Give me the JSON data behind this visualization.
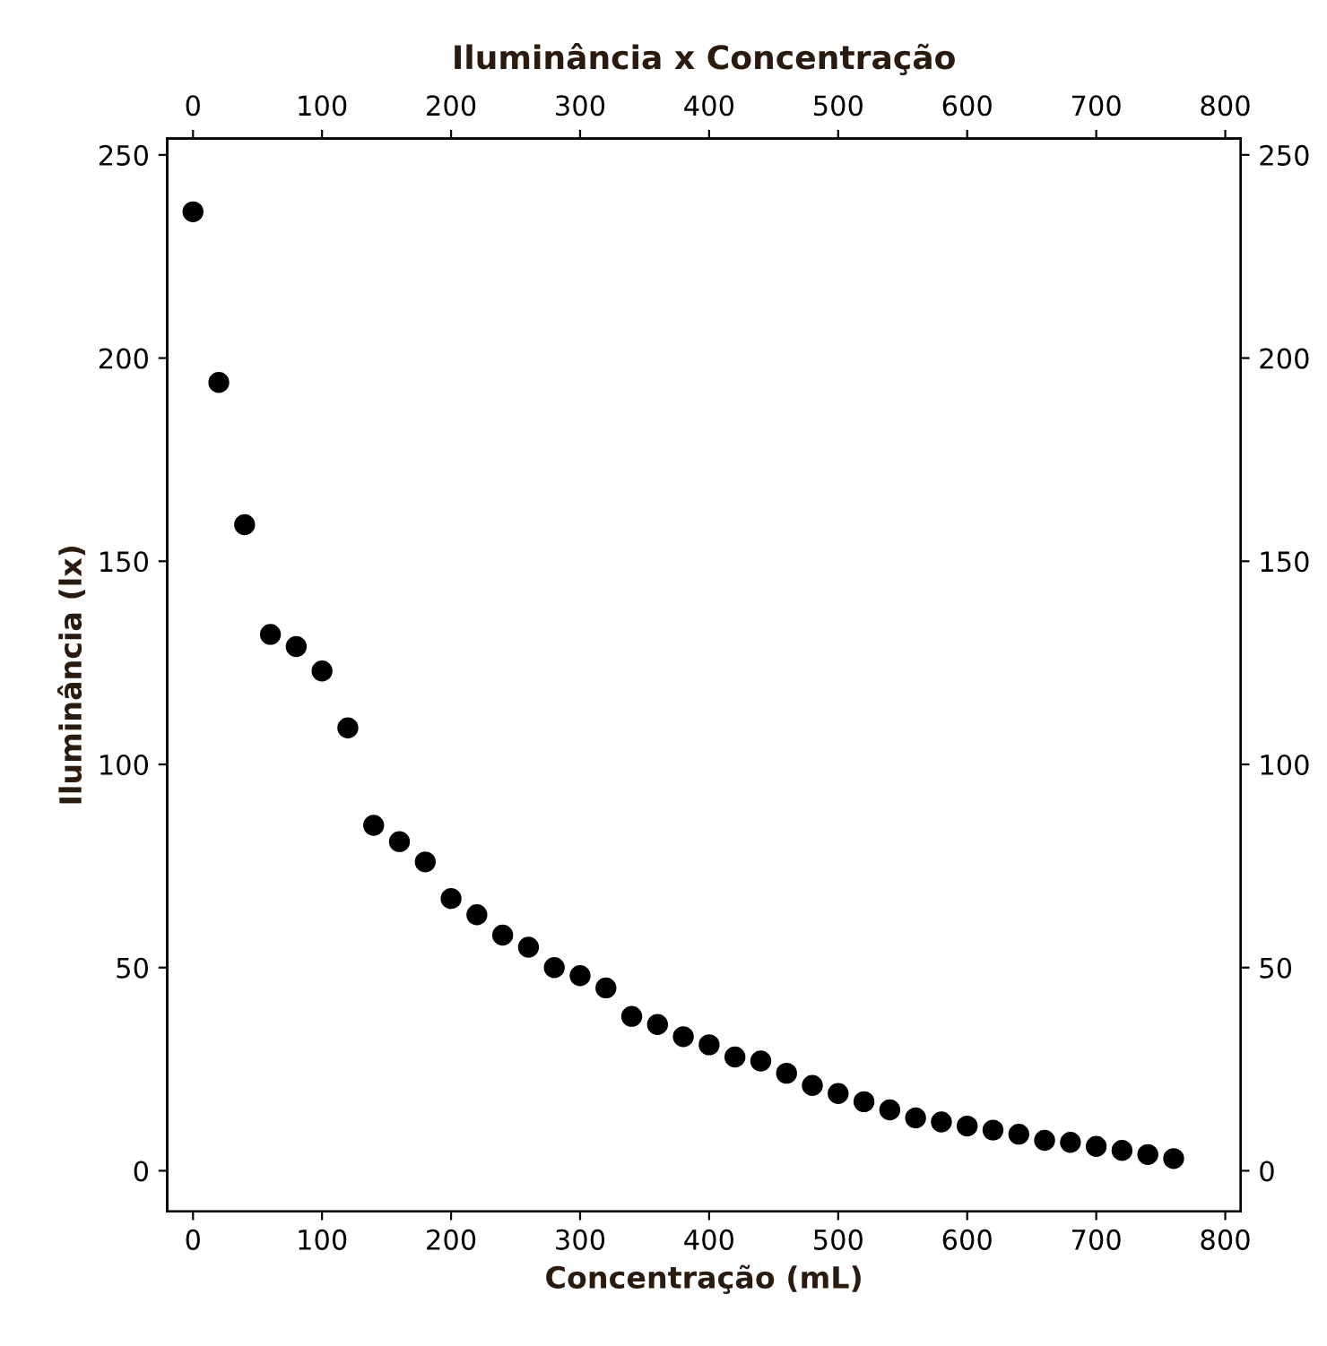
{
  "chart_data": {
    "type": "scatter",
    "title": "Iluminância x Concentração",
    "xlabel": "Concentração (mL)",
    "ylabel": "Iluminância (lx)",
    "x": [
      0,
      20,
      40,
      60,
      80,
      100,
      120,
      140,
      160,
      180,
      200,
      220,
      240,
      260,
      280,
      300,
      320,
      340,
      360,
      380,
      400,
      420,
      440,
      460,
      480,
      500,
      520,
      540,
      560,
      580,
      600,
      620,
      640,
      660,
      680,
      700,
      720,
      740,
      760
    ],
    "series": [
      {
        "color": "#000000",
        "values": [
          236,
          194,
          159,
          132,
          129,
          123,
          109,
          85,
          81,
          76,
          67,
          63,
          58,
          55,
          50,
          48,
          45,
          38,
          36,
          33,
          31,
          28,
          27,
          24,
          21,
          19,
          17,
          15,
          13,
          12,
          11,
          10,
          9,
          7.5,
          7,
          6,
          5,
          4,
          3
        ]
      }
    ],
    "marker": "circle",
    "grid": false,
    "legend": false,
    "xlim": [
      -20,
      812
    ],
    "xticks": [
      0,
      100,
      200,
      300,
      400,
      500,
      600,
      700,
      800
    ],
    "x2lim": [
      -20,
      812
    ],
    "x2ticks": [
      0,
      100,
      200,
      300,
      400,
      500,
      600,
      700,
      800
    ],
    "ylim": [
      -10,
      254
    ],
    "yticks": [
      0,
      50,
      100,
      150,
      200,
      250
    ],
    "y2lim": [
      -10,
      254
    ],
    "y2ticks": [
      0,
      50,
      100,
      150,
      200,
      250
    ]
  }
}
